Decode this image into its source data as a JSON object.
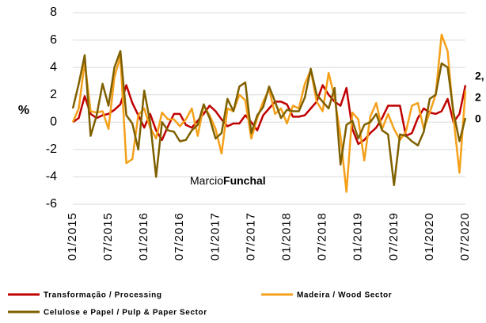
{
  "chart_data": {
    "type": "line",
    "y_label": "%",
    "categories": [
      "01/2015",
      null,
      null,
      null,
      null,
      null,
      "07/2015",
      null,
      null,
      null,
      null,
      null,
      "01/2016",
      null,
      null,
      null,
      null,
      null,
      "07/2016",
      null,
      null,
      null,
      null,
      null,
      "01/2017",
      null,
      null,
      null,
      null,
      null,
      "07/2017",
      null,
      null,
      null,
      null,
      null,
      "01/2018",
      null,
      null,
      null,
      null,
      null,
      "07/2018",
      null,
      null,
      null,
      null,
      null,
      "01/2019",
      null,
      null,
      null,
      null,
      null,
      "07/2019",
      null,
      null,
      null,
      null,
      null,
      "01/2020",
      null,
      null,
      null,
      null,
      null,
      "07/2020"
    ],
    "series": [
      {
        "name": "Transformação / Processing",
        "color": "#c00000",
        "values": [
          0,
          0.3,
          1.9,
          0.6,
          0.3,
          0.5,
          0.6,
          0.9,
          1.3,
          2.7,
          1.4,
          0.5,
          -0.4,
          0.6,
          -0.6,
          -1.3,
          -0.3,
          0.6,
          0.6,
          -0.2,
          -0.4,
          0.1,
          0.6,
          1.2,
          0.8,
          0.2,
          -0.3,
          -0.1,
          -0.1,
          0.5,
          0,
          -0.6,
          0.5,
          1.0,
          1.5,
          1.5,
          1.3,
          0.4,
          0.4,
          0.5,
          1.0,
          1.5,
          2.7,
          2.0,
          1.5,
          1.2,
          2.5,
          -0.5,
          -1.6,
          -1.3,
          -0.8,
          -0.4,
          0.3,
          1.2,
          1.2,
          1.2,
          -1.0,
          -0.8,
          0.3,
          1.0,
          0.7,
          0.6,
          0.8,
          1.7,
          0,
          0.6,
          2.7
        ]
      },
      {
        "name": "Madeira / Wood Sector",
        "color": "#f5a01a",
        "values": [
          0,
          1.0,
          4.4,
          0.8,
          0.7,
          0.8,
          -0.5,
          3.3,
          4.8,
          -3.0,
          -2.7,
          0.5,
          1.0,
          -0.4,
          -1.2,
          0.7,
          0.2,
          0.2,
          -0.3,
          0.2,
          1.0,
          -1.0,
          1.2,
          0.5,
          -0.5,
          -2.3,
          1.0,
          0.8,
          2.0,
          1.6,
          -1.2,
          0.3,
          1.5,
          2.4,
          0.6,
          1.0,
          -0.1,
          1.2,
          1.0,
          2.8,
          3.8,
          1.5,
          0.8,
          3.6,
          1.8,
          -1.0,
          -5.1,
          0.7,
          0.2,
          -2.8,
          0.4,
          1.4,
          -0.5,
          0.6,
          -0.5,
          -1.3,
          -0.7,
          1.2,
          1.4,
          -0.5,
          0.7,
          2.0,
          6.4,
          5.2,
          0.3,
          -3.7,
          2.3
        ]
      },
      {
        "name": "Celulose e Papel / Pulp & Paper Sector",
        "color": "#7f6000",
        "values": [
          1.0,
          2.8,
          4.9,
          -1.0,
          0.5,
          2.8,
          1.2,
          4.0,
          5.2,
          0.5,
          -0.1,
          -2.0,
          2.3,
          0,
          -4.0,
          0,
          -0.6,
          -0.7,
          -1.4,
          -1.3,
          -0.6,
          -0.2,
          1.3,
          0.3,
          -1.2,
          -0.8,
          1.7,
          0.8,
          2.6,
          2.9,
          -0.8,
          0.5,
          1.1,
          2.6,
          1.5,
          0.3,
          0.9,
          0.8,
          0.8,
          1.8,
          3.9,
          2.0,
          1.5,
          1.0,
          2.5,
          -3.1,
          -0.2,
          0.1,
          -1.2,
          -0.2,
          0,
          0.6,
          -0.6,
          -0.9,
          -4.6,
          -0.9,
          -1.0,
          -1.4,
          -1.7,
          -0.7,
          1.7,
          2.0,
          4.3,
          4.0,
          0.7,
          -1.4,
          0.3
        ]
      }
    ],
    "annotations": [
      {
        "text": "2,",
        "color": "#c00000"
      },
      {
        "text": "2",
        "color": "#f5a01a"
      },
      {
        "text": "0",
        "color": "#7f6000"
      }
    ],
    "watermark": [
      "Marcio",
      "Funchal"
    ],
    "ylim": [
      -6,
      8
    ],
    "yticks": [
      -6,
      -4,
      -2,
      0,
      2,
      4,
      6,
      8
    ],
    "grid": true
  }
}
